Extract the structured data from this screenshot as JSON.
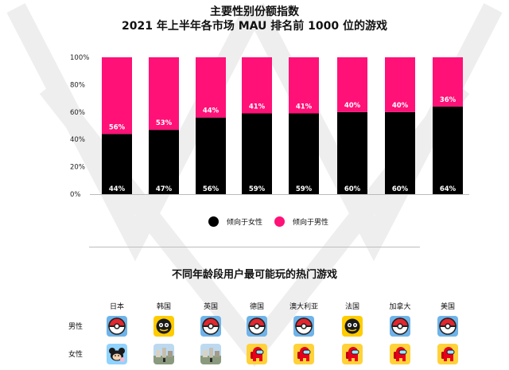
{
  "title_line1": "主要性别份额指数",
  "title_line2": "2021 年上半年各市场 MAU 排名前 1000 位的游戏",
  "chart_data": {
    "type": "bar",
    "stacked": true,
    "title": "主要性别份额指数 2021 年上半年各市场 MAU 排名前 1000 位的游戏",
    "y_ticks": [
      "0%",
      "20%",
      "40%",
      "60%",
      "80%",
      "100%"
    ],
    "ylim": [
      0,
      100
    ],
    "categories": [
      "",
      "",
      "",
      "",
      "",
      "",
      "",
      ""
    ],
    "series": [
      {
        "name": "倾向于女性",
        "color": "#000000",
        "values": [
          44,
          47,
          56,
          59,
          59,
          60,
          60,
          64
        ],
        "labels": [
          "44%",
          "47%",
          "56%",
          "59%",
          "59%",
          "60%",
          "60%",
          "64%"
        ]
      },
      {
        "name": "倾向于男性",
        "color": "#ff1177",
        "values": [
          56,
          53,
          44,
          41,
          41,
          40,
          40,
          36
        ],
        "labels": [
          "56%",
          "53%",
          "44%",
          "41%",
          "41%",
          "40%",
          "40%",
          "36%"
        ]
      }
    ],
    "grid": false,
    "legend_position": "bottom"
  },
  "legend": [
    {
      "label": "倾向于女性",
      "color": "#000000"
    },
    {
      "label": "倾向于男性",
      "color": "#ff1177"
    }
  ],
  "section_title": "不同年龄段用户最可能玩的热门游戏",
  "countries": [
    "日本",
    "韩国",
    "英国",
    "德国",
    "澳大利亚",
    "法国",
    "加拿大",
    "美国"
  ],
  "rows": [
    {
      "label": "男性",
      "icons": [
        "pokeball-icon",
        "brawl-stars-icon",
        "pokeball-icon",
        "pokeball-icon",
        "pokeball-icon",
        "brawl-stars-icon",
        "pokeball-icon",
        "pokeball-icon"
      ]
    },
    {
      "label": "女性",
      "icons": [
        "tsum-tsum-icon",
        "landscape-game-icon",
        "landscape-game-icon",
        "among-us-icon",
        "among-us-icon",
        "among-us-icon",
        "among-us-icon",
        "among-us-icon"
      ]
    }
  ]
}
